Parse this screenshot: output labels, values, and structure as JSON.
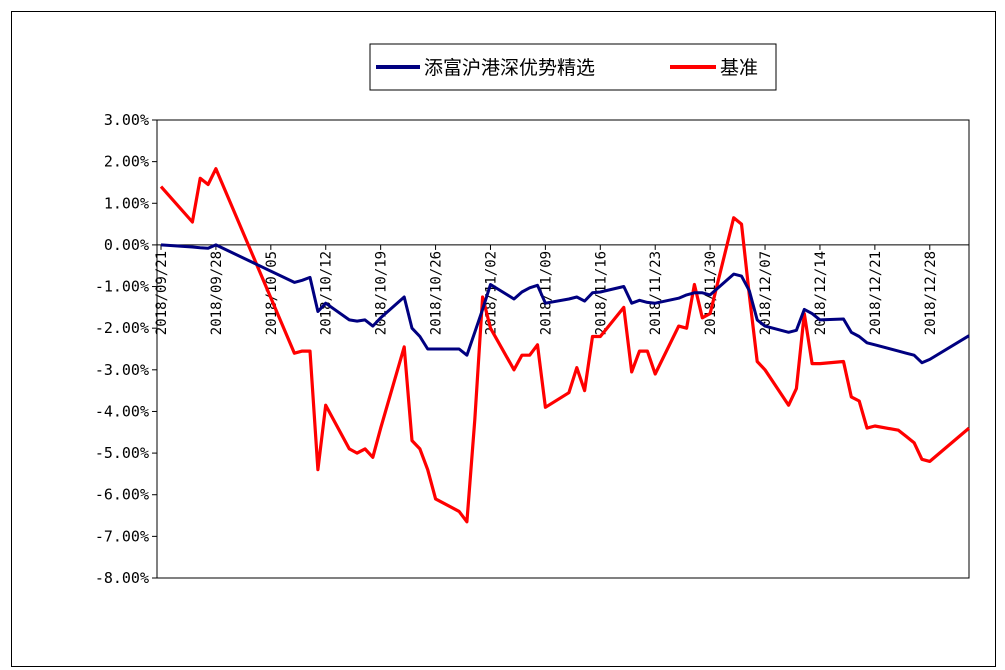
{
  "chart_data": {
    "type": "line",
    "ylim": [
      -0.08,
      0.03
    ],
    "y_ticks": [
      "3.00%",
      "2.00%",
      "1.00%",
      "0.00%",
      "-1.00%",
      "-2.00%",
      "-3.00%",
      "-4.00%",
      "-5.00%",
      "-6.00%",
      "-7.00%",
      "-8.00%"
    ],
    "y_tick_values": [
      0.03,
      0.02,
      0.01,
      0,
      -0.01,
      -0.02,
      -0.03,
      -0.04,
      -0.05,
      -0.06,
      -0.07,
      -0.08
    ],
    "x_ticks": [
      "2018/09/21",
      "2018/09/28",
      "2018/10/05",
      "2018/10/12",
      "2018/10/19",
      "2018/10/26",
      "2018/11/02",
      "2018/11/09",
      "2018/11/16",
      "2018/11/23",
      "2018/11/30",
      "2018/12/07",
      "2018/12/14",
      "2018/12/21",
      "2018/12/28"
    ],
    "legend_position": "top",
    "grid": false,
    "series": [
      {
        "name": "添富沪港深优势精选",
        "color": "#000080",
        "points": [
          [
            "2018/09/21",
            0.0
          ],
          [
            "2018/09/25",
            -0.0005
          ],
          [
            "2018/09/26",
            -0.0007
          ],
          [
            "2018/09/27",
            -0.0008
          ],
          [
            "2018/09/28",
            0.0
          ],
          [
            "2018/10/08",
            -0.009
          ],
          [
            "2018/10/09",
            -0.0085
          ],
          [
            "2018/10/10",
            -0.0078
          ],
          [
            "2018/10/11",
            -0.016
          ],
          [
            "2018/10/12",
            -0.014
          ],
          [
            "2018/10/15",
            -0.018
          ],
          [
            "2018/10/16",
            -0.0183
          ],
          [
            "2018/10/17",
            -0.018
          ],
          [
            "2018/10/18",
            -0.0195
          ],
          [
            "2018/10/19",
            -0.0175
          ],
          [
            "2018/10/22",
            -0.0125
          ],
          [
            "2018/10/23",
            -0.02
          ],
          [
            "2018/10/24",
            -0.022
          ],
          [
            "2018/10/25",
            -0.025
          ],
          [
            "2018/10/26",
            -0.025
          ],
          [
            "2018/10/29",
            -0.025
          ],
          [
            "2018/10/30",
            -0.0265
          ],
          [
            "2018/10/31",
            -0.021
          ],
          [
            "2018/11/01",
            -0.0155
          ],
          [
            "2018/11/02",
            -0.0095
          ],
          [
            "2018/11/05",
            -0.013
          ],
          [
            "2018/11/06",
            -0.0113
          ],
          [
            "2018/11/07",
            -0.0103
          ],
          [
            "2018/11/08",
            -0.0097
          ],
          [
            "2018/11/09",
            -0.014
          ],
          [
            "2018/11/12",
            -0.013
          ],
          [
            "2018/11/13",
            -0.0125
          ],
          [
            "2018/11/14",
            -0.0135
          ],
          [
            "2018/11/15",
            -0.0115
          ],
          [
            "2018/11/16",
            -0.0113
          ],
          [
            "2018/11/19",
            -0.01
          ],
          [
            "2018/11/20",
            -0.014
          ],
          [
            "2018/11/21",
            -0.0133
          ],
          [
            "2018/11/22",
            -0.0138
          ],
          [
            "2018/11/23",
            -0.014
          ],
          [
            "2018/11/26",
            -0.0128
          ],
          [
            "2018/11/27",
            -0.012
          ],
          [
            "2018/11/28",
            -0.0115
          ],
          [
            "2018/11/29",
            -0.0115
          ],
          [
            "2018/11/30",
            -0.012
          ],
          [
            "2018/12/03",
            -0.007
          ],
          [
            "2018/12/04",
            -0.0075
          ],
          [
            "2018/12/05",
            -0.011
          ],
          [
            "2018/12/06",
            -0.018
          ],
          [
            "2018/12/07",
            -0.0195
          ],
          [
            "2018/12/10",
            -0.021
          ],
          [
            "2018/12/11",
            -0.0205
          ],
          [
            "2018/12/12",
            -0.0155
          ],
          [
            "2018/12/13",
            -0.0165
          ],
          [
            "2018/12/14",
            -0.018
          ],
          [
            "2018/12/17",
            -0.0178
          ],
          [
            "2018/12/18",
            -0.021
          ],
          [
            "2018/12/19",
            -0.022
          ],
          [
            "2018/12/20",
            -0.0235
          ],
          [
            "2018/12/21",
            -0.024
          ],
          [
            "2018/12/24",
            -0.0255
          ],
          [
            "2018/12/25",
            -0.026
          ],
          [
            "2018/12/26",
            -0.0265
          ],
          [
            "2018/12/27",
            -0.0283
          ],
          [
            "2018/12/28",
            -0.0275
          ],
          [
            "2019/01/02",
            -0.0218
          ]
        ]
      },
      {
        "name": "基准",
        "color": "#ff0000",
        "points": [
          [
            "2018/09/21",
            0.014
          ],
          [
            "2018/09/25",
            0.0055
          ],
          [
            "2018/09/26",
            0.016
          ],
          [
            "2018/09/27",
            0.0145
          ],
          [
            "2018/09/28",
            0.0183
          ],
          [
            "2018/10/08",
            -0.026
          ],
          [
            "2018/10/09",
            -0.0255
          ],
          [
            "2018/10/10",
            -0.0255
          ],
          [
            "2018/10/11",
            -0.054
          ],
          [
            "2018/10/12",
            -0.0385
          ],
          [
            "2018/10/15",
            -0.049
          ],
          [
            "2018/10/16",
            -0.05
          ],
          [
            "2018/10/17",
            -0.049
          ],
          [
            "2018/10/18",
            -0.051
          ],
          [
            "2018/10/19",
            -0.044
          ],
          [
            "2018/10/22",
            -0.0245
          ],
          [
            "2018/10/23",
            -0.047
          ],
          [
            "2018/10/24",
            -0.049
          ],
          [
            "2018/10/25",
            -0.054
          ],
          [
            "2018/10/26",
            -0.061
          ],
          [
            "2018/10/29",
            -0.064
          ],
          [
            "2018/10/30",
            -0.0665
          ],
          [
            "2018/10/31",
            -0.042
          ],
          [
            "2018/11/01",
            -0.0125
          ],
          [
            "2018/11/02",
            -0.02
          ],
          [
            "2018/11/05",
            -0.03
          ],
          [
            "2018/11/06",
            -0.0265
          ],
          [
            "2018/11/07",
            -0.0265
          ],
          [
            "2018/11/08",
            -0.024
          ],
          [
            "2018/11/09",
            -0.039
          ],
          [
            "2018/11/12",
            -0.0355
          ],
          [
            "2018/11/13",
            -0.0295
          ],
          [
            "2018/11/14",
            -0.035
          ],
          [
            "2018/11/15",
            -0.022
          ],
          [
            "2018/11/16",
            -0.022
          ],
          [
            "2018/11/19",
            -0.015
          ],
          [
            "2018/11/20",
            -0.0305
          ],
          [
            "2018/11/21",
            -0.0255
          ],
          [
            "2018/11/22",
            -0.0255
          ],
          [
            "2018/11/23",
            -0.031
          ],
          [
            "2018/11/26",
            -0.0195
          ],
          [
            "2018/11/27",
            -0.02
          ],
          [
            "2018/11/28",
            -0.0095
          ],
          [
            "2018/11/29",
            -0.0175
          ],
          [
            "2018/11/30",
            -0.0165
          ],
          [
            "2018/12/03",
            0.0065
          ],
          [
            "2018/12/04",
            0.005
          ],
          [
            "2018/12/05",
            -0.012
          ],
          [
            "2018/12/06",
            -0.028
          ],
          [
            "2018/12/07",
            -0.03
          ],
          [
            "2018/12/10",
            -0.0385
          ],
          [
            "2018/12/11",
            -0.0345
          ],
          [
            "2018/12/12",
            -0.0165
          ],
          [
            "2018/12/13",
            -0.0285
          ],
          [
            "2018/12/14",
            -0.0285
          ],
          [
            "2018/12/17",
            -0.028
          ],
          [
            "2018/12/18",
            -0.0365
          ],
          [
            "2018/12/19",
            -0.0375
          ],
          [
            "2018/12/20",
            -0.044
          ],
          [
            "2018/12/21",
            -0.0435
          ],
          [
            "2018/12/24",
            -0.0445
          ],
          [
            "2018/12/25",
            -0.046
          ],
          [
            "2018/12/26",
            -0.0475
          ],
          [
            "2018/12/27",
            -0.0515
          ],
          [
            "2018/12/28",
            -0.052
          ],
          [
            "2019/01/02",
            -0.044
          ]
        ]
      }
    ]
  }
}
